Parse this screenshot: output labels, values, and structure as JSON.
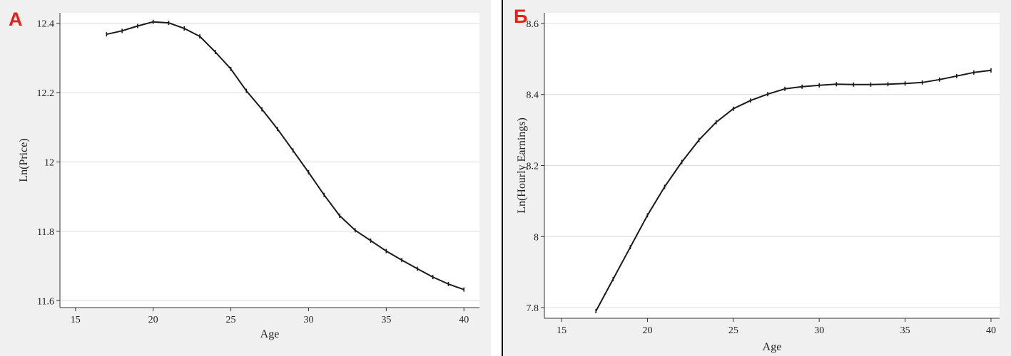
{
  "panels": [
    {
      "label": "А"
    },
    {
      "label": "Б"
    }
  ],
  "chart_data": [
    {
      "type": "line",
      "title": "",
      "xlabel": "Age",
      "ylabel": "Ln(Price)",
      "xlim": [
        14,
        41
      ],
      "ylim": [
        11.58,
        12.43
      ],
      "xticks": [
        15,
        20,
        25,
        30,
        35,
        40
      ],
      "yticks": [
        11.6,
        11.8,
        12,
        12.2,
        12.4
      ],
      "ytick_labels": [
        "11.6",
        "11.8",
        "12",
        "12.2",
        "12.4"
      ],
      "grid": "horizontal",
      "color": "#1a1a1a",
      "x": [
        17,
        18,
        19,
        20,
        21,
        22,
        23,
        24,
        25,
        26,
        27,
        28,
        29,
        30,
        31,
        32,
        33,
        34,
        35,
        36,
        37,
        38,
        39,
        40
      ],
      "y": [
        12.368,
        12.378,
        12.392,
        12.404,
        12.401,
        12.385,
        12.362,
        12.317,
        12.268,
        12.205,
        12.152,
        12.095,
        12.033,
        11.97,
        11.905,
        11.845,
        11.803,
        11.773,
        11.743,
        11.717,
        11.692,
        11.668,
        11.648,
        11.632
      ]
    },
    {
      "type": "line",
      "title": "",
      "xlabel": "Age",
      "ylabel": "Ln(Hourly Earnings)",
      "xlim": [
        14,
        40.5
      ],
      "ylim": [
        7.77,
        8.63
      ],
      "xticks": [
        15,
        20,
        25,
        30,
        35,
        40
      ],
      "yticks": [
        7.8,
        8,
        8.2,
        8.4,
        8.6
      ],
      "ytick_labels": [
        "7.8",
        "8",
        "8.2",
        "8.4",
        "8.6"
      ],
      "grid": "horizontal",
      "color": "#1a1a1a",
      "x": [
        17,
        18,
        19,
        20,
        21,
        22,
        23,
        24,
        25,
        26,
        27,
        28,
        29,
        30,
        31,
        32,
        33,
        34,
        35,
        36,
        37,
        38,
        39,
        40
      ],
      "y": [
        7.79,
        7.88,
        7.97,
        8.06,
        8.14,
        8.21,
        8.272,
        8.322,
        8.36,
        8.383,
        8.401,
        8.416,
        8.422,
        8.426,
        8.429,
        8.428,
        8.428,
        8.429,
        8.431,
        8.434,
        8.442,
        8.452,
        8.462,
        8.468
      ]
    }
  ]
}
